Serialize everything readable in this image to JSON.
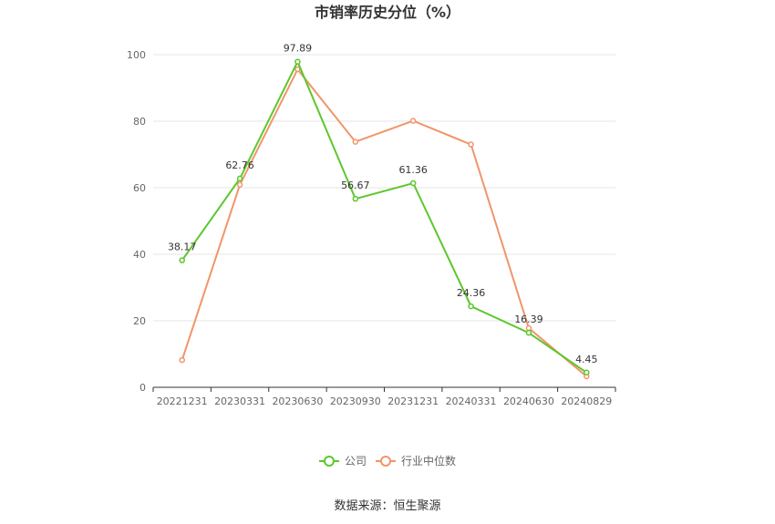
{
  "chart_data": {
    "type": "line",
    "title": "市销率历史分位（%）",
    "xlabel": "",
    "ylabel": "",
    "ylim": [
      0,
      100
    ],
    "yticks": [
      0,
      20,
      40,
      60,
      80,
      100
    ],
    "grid": true,
    "legend_position": "bottom",
    "categories": [
      "20221231",
      "20230331",
      "20230630",
      "20230930",
      "20231231",
      "20240331",
      "20240630",
      "20240829"
    ],
    "series": [
      {
        "name": "公司",
        "color": "#5cc72c",
        "values": [
          38.17,
          62.76,
          97.89,
          56.67,
          61.36,
          24.36,
          16.39,
          4.45
        ],
        "data_labels": [
          "38.17",
          "62.76",
          "97.89",
          "56.67",
          "61.36",
          "24.36",
          "16.39",
          "4.45"
        ]
      },
      {
        "name": "行业中位数",
        "color": "#f0956a",
        "values": [
          8.2,
          60.9,
          95.6,
          73.8,
          80.1,
          73.0,
          17.8,
          3.3
        ]
      }
    ]
  },
  "source_text": "数据来源：恒生聚源"
}
